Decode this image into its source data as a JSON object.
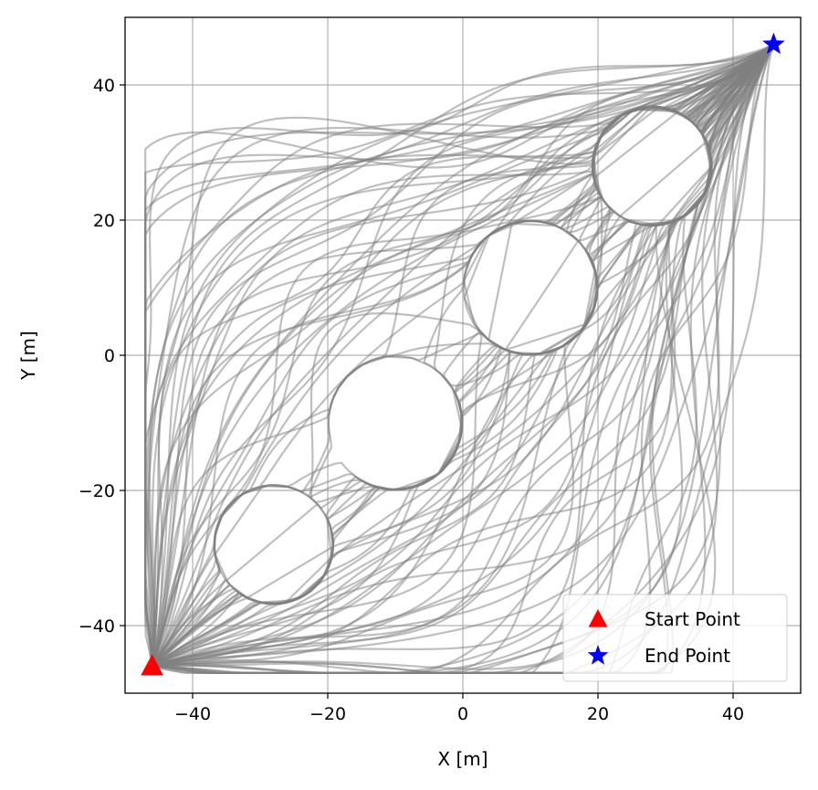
{
  "chart_data": {
    "type": "line",
    "xlabel": "X [m]",
    "ylabel": "Y [m]",
    "xlim": [
      -50,
      50
    ],
    "ylim": [
      -50,
      50
    ],
    "xticks": [
      -40,
      -20,
      0,
      20,
      40
    ],
    "yticks": [
      -40,
      -20,
      0,
      20,
      40
    ],
    "xtick_labels": [
      "−40",
      "−20",
      "0",
      "20",
      "40"
    ],
    "ytick_labels": [
      "−40",
      "−20",
      "0",
      "20",
      "40"
    ],
    "grid": true,
    "legend_position": "lower-right",
    "trajectory_color": "#808080",
    "trajectory_count": 100,
    "obstacles": [
      {
        "x": 10,
        "y": 10,
        "r": 9
      },
      {
        "x": -10,
        "y": -10,
        "r": 9
      },
      {
        "x": 28,
        "y": 28,
        "r": 8
      },
      {
        "x": -28,
        "y": -28,
        "r": 8
      }
    ],
    "start_point": {
      "label": "Start Point",
      "x": -46,
      "y": -46,
      "color": "#ff0000",
      "marker": "triangle"
    },
    "end_point": {
      "label": "End Point",
      "x": 46,
      "y": 46,
      "color": "#0000ff",
      "marker": "star"
    }
  }
}
